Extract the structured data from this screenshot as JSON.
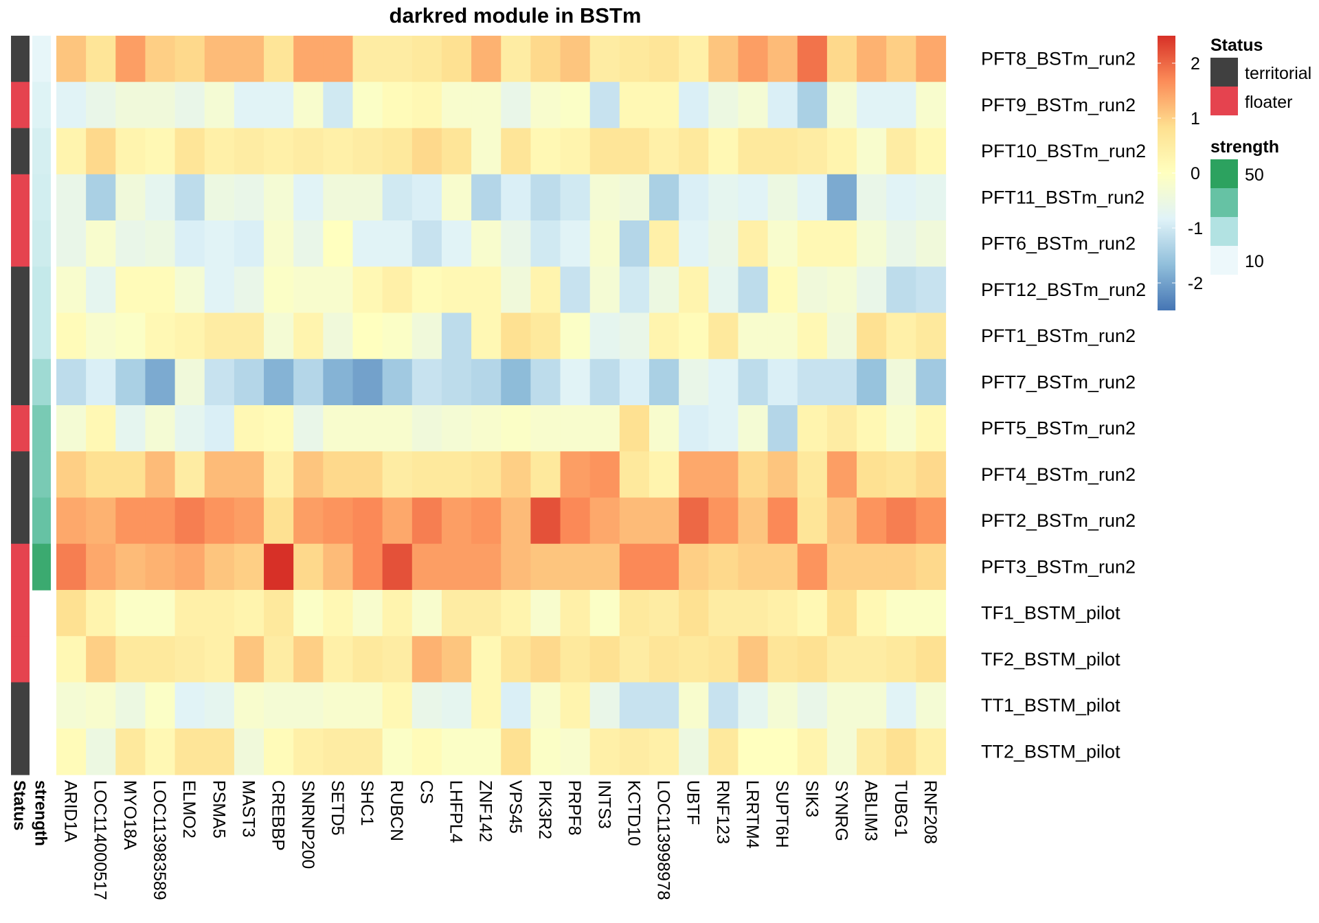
{
  "chart_data": {
    "type": "heatmap",
    "title": "darkred module in BSTm",
    "columns": [
      "ARID1A",
      "LOC114000517",
      "MYO18A",
      "LOC113983589",
      "ELMO2",
      "PSMA5",
      "MAST3",
      "CREBBP",
      "SNRNP200",
      "SETD5",
      "SHC1",
      "RUBCN",
      "CS",
      "LHFPL4",
      "ZNF142",
      "VPS45",
      "PIK3R2",
      "PRPF8",
      "INTS3",
      "KCTD10",
      "LOC113998978",
      "UBTF",
      "RNF123",
      "LRRTM4",
      "SUPT6H",
      "SIK3",
      "SYNRG",
      "ABLIM3",
      "TUBG1",
      "RNF208"
    ],
    "rows": [
      "PFT8_BSTm_run2",
      "PFT9_BSTm_run2",
      "PFT10_BSTm_run2",
      "PFT11_BSTm_run2",
      "PFT6_BSTm_run2",
      "PFT12_BSTm_run2",
      "PFT1_BSTm_run2",
      "PFT7_BSTm_run2",
      "PFT5_BSTm_run2",
      "PFT4_BSTm_run2",
      "PFT2_BSTm_run2",
      "PFT3_BSTm_run2",
      "TF1_BSTM_pilot",
      "TF2_BSTM_pilot",
      "TT1_BSTM_pilot",
      "TT2_BSTM_pilot"
    ],
    "values": [
      [
        1.1,
        0.7,
        1.5,
        1.0,
        0.9,
        1.2,
        1.2,
        0.7,
        1.4,
        1.4,
        0.5,
        0.5,
        0.6,
        0.8,
        1.3,
        0.5,
        0.9,
        1.1,
        0.5,
        0.6,
        0.7,
        0.4,
        1.1,
        1.5,
        1.2,
        1.9,
        0.9,
        1.3,
        1.0,
        1.4
      ],
      [
        -0.8,
        -0.6,
        -0.4,
        -0.4,
        -0.6,
        -0.3,
        -0.8,
        -0.8,
        -0.2,
        -1.0,
        -0.1,
        0.1,
        0.2,
        -0.2,
        -0.2,
        -0.6,
        -0.2,
        -0.1,
        -1.1,
        0.2,
        0.2,
        -0.9,
        -0.5,
        -0.3,
        -0.9,
        -1.4,
        -0.3,
        -0.8,
        -0.8,
        -0.2
      ],
      [
        0.3,
        0.9,
        0.3,
        0.2,
        0.7,
        0.4,
        0.5,
        0.4,
        0.5,
        0.4,
        0.5,
        0.6,
        0.9,
        0.7,
        -0.2,
        0.7,
        0.2,
        0.3,
        0.7,
        0.7,
        0.4,
        0.6,
        0.2,
        0.6,
        0.6,
        0.5,
        0.3,
        -0.2,
        0.5,
        0.2
      ],
      [
        -0.6,
        -1.4,
        -0.4,
        -0.7,
        -1.2,
        -0.5,
        -0.6,
        -0.3,
        -0.8,
        -0.4,
        -0.4,
        -1.0,
        -0.9,
        -0.2,
        -1.3,
        -0.9,
        -1.2,
        -1.0,
        -0.3,
        -0.4,
        -1.4,
        -0.9,
        -0.7,
        -0.8,
        -0.5,
        -0.8,
        -1.9,
        -0.6,
        -0.8,
        -0.7
      ],
      [
        -0.6,
        -0.2,
        -0.6,
        -0.5,
        -0.9,
        -0.8,
        -0.9,
        -0.2,
        -0.6,
        0.0,
        -0.8,
        -0.8,
        -1.1,
        -0.8,
        -0.2,
        -0.6,
        -1.0,
        -0.8,
        -0.2,
        -1.3,
        0.4,
        -0.8,
        -0.6,
        0.4,
        -0.2,
        0.2,
        0.2,
        -0.3,
        -0.6,
        -0.4
      ],
      [
        -0.2,
        -0.7,
        0.1,
        0.1,
        -0.3,
        -0.8,
        -0.6,
        -0.1,
        -0.2,
        -0.2,
        0.2,
        0.4,
        0.1,
        0.2,
        0.2,
        -0.4,
        0.3,
        -1.1,
        -0.3,
        -1.0,
        -0.5,
        0.3,
        -0.7,
        -1.2,
        0.1,
        -0.4,
        -0.3,
        -0.6,
        -1.2,
        -1.1
      ],
      [
        0.1,
        -0.2,
        -0.1,
        0.2,
        0.3,
        0.5,
        0.5,
        -0.3,
        0.3,
        -0.4,
        0.0,
        -0.1,
        -0.4,
        -1.2,
        0.2,
        0.8,
        0.6,
        -0.1,
        -0.7,
        -0.6,
        0.3,
        0.1,
        0.6,
        -0.2,
        -0.2,
        0.2,
        -0.4,
        0.8,
        0.4,
        0.6
      ],
      [
        -1.2,
        -0.9,
        -1.4,
        -1.9,
        -0.4,
        -1.1,
        -1.3,
        -1.8,
        -1.3,
        -1.8,
        -2.0,
        -1.5,
        -1.1,
        -1.2,
        -1.3,
        -1.7,
        -1.2,
        -0.8,
        -1.2,
        -0.9,
        -1.4,
        -0.6,
        -0.8,
        -1.2,
        -0.9,
        -1.1,
        -1.1,
        -1.6,
        -0.4,
        -1.5
      ],
      [
        -0.3,
        0.2,
        -0.7,
        -0.3,
        -0.7,
        -0.9,
        0.2,
        0.1,
        -0.6,
        -0.2,
        -0.2,
        -0.2,
        -0.4,
        -0.3,
        -0.2,
        -0.1,
        -0.2,
        -0.2,
        -0.2,
        0.8,
        -0.2,
        -0.9,
        -0.8,
        -0.3,
        -1.3,
        0.3,
        0.5,
        0.2,
        -0.2,
        0.2
      ],
      [
        1.0,
        0.8,
        0.8,
        1.2,
        0.5,
        1.2,
        1.2,
        0.4,
        1.1,
        0.9,
        0.9,
        0.5,
        0.6,
        0.6,
        0.7,
        1.0,
        0.6,
        1.5,
        1.6,
        0.6,
        0.3,
        1.4,
        1.4,
        0.9,
        1.1,
        0.6,
        1.5,
        0.8,
        0.7,
        0.9
      ],
      [
        1.4,
        1.3,
        1.6,
        1.6,
        1.8,
        1.6,
        1.5,
        0.8,
        1.5,
        1.6,
        1.7,
        1.4,
        1.8,
        1.5,
        1.6,
        1.2,
        2.2,
        1.7,
        1.4,
        1.2,
        1.2,
        2.0,
        1.6,
        1.1,
        1.7,
        0.7,
        1.1,
        1.6,
        1.8,
        1.6
      ],
      [
        1.8,
        1.4,
        1.2,
        1.3,
        1.4,
        1.1,
        1.0,
        2.5,
        0.9,
        1.2,
        1.7,
        2.2,
        1.5,
        1.5,
        1.5,
        1.2,
        1.1,
        1.1,
        1.1,
        1.7,
        1.7,
        1.0,
        0.9,
        1.0,
        1.0,
        1.6,
        1.0,
        1.0,
        1.0,
        0.9
      ],
      [
        0.8,
        0.3,
        -0.1,
        -0.1,
        0.4,
        0.4,
        0.3,
        0.6,
        -0.1,
        0.2,
        -0.2,
        0.3,
        -0.2,
        0.5,
        0.5,
        0.3,
        -0.2,
        0.4,
        -0.1,
        0.6,
        0.5,
        0.8,
        0.5,
        0.5,
        0.4,
        0.2,
        0.8,
        0.2,
        -0.1,
        -0.1
      ],
      [
        0.2,
        1.0,
        0.6,
        0.6,
        0.5,
        0.4,
        1.1,
        0.5,
        1.0,
        0.4,
        0.6,
        0.5,
        1.3,
        1.1,
        0.2,
        0.7,
        0.9,
        0.6,
        0.8,
        0.5,
        0.7,
        0.6,
        0.7,
        1.1,
        0.7,
        0.8,
        0.5,
        0.5,
        0.6,
        0.8
      ],
      [
        -0.3,
        -0.2,
        -0.5,
        -0.1,
        -0.8,
        -0.7,
        -0.2,
        -0.3,
        -0.3,
        -0.2,
        -0.2,
        0.2,
        -0.6,
        -0.7,
        0.2,
        -0.9,
        -0.2,
        0.3,
        -0.6,
        -1.1,
        -1.1,
        -0.2,
        -1.1,
        -0.7,
        -0.3,
        -0.6,
        -0.3,
        -0.3,
        -0.8,
        -0.3
      ],
      [
        0.1,
        -0.5,
        0.6,
        0.2,
        0.7,
        0.7,
        -0.4,
        0.1,
        0.4,
        0.5,
        0.5,
        -0.1,
        0.1,
        -0.1,
        -0.1,
        0.8,
        -0.1,
        -0.2,
        0.4,
        0.5,
        0.4,
        -0.5,
        0.6,
        0.0,
        0.0,
        0.3,
        -0.3,
        0.5,
        0.8,
        0.4
      ]
    ],
    "row_annotations": {
      "Status": [
        "territorial",
        "floater",
        "territorial",
        "floater",
        "floater",
        "territorial",
        "territorial",
        "territorial",
        "floater",
        "territorial",
        "territorial",
        "floater",
        "floater",
        "floater",
        "territorial",
        "territorial"
      ],
      "strength": [
        2,
        5,
        8,
        9,
        11,
        14,
        14,
        25,
        35,
        35,
        40,
        55,
        null,
        null,
        null,
        null
      ]
    },
    "annotation_labels": [
      "Status",
      "strength"
    ],
    "color_scale": {
      "breaks": [
        2,
        1,
        0,
        -1,
        -2
      ],
      "break_labels": [
        "2",
        "1",
        "0",
        "-1",
        "-2"
      ],
      "range": [
        -2.5,
        2.5
      ],
      "stops": [
        "#4575b4",
        "#91bfdb",
        "#e0f3f8",
        "#ffffbf",
        "#fee090",
        "#fc8d59",
        "#d73027"
      ]
    },
    "legend": {
      "status_title": "Status",
      "status_items": [
        {
          "label": "territorial",
          "color": "#404040"
        },
        {
          "label": "floater",
          "color": "#e5434f"
        }
      ],
      "strength_title": "strength",
      "strength_labels": [
        "50",
        "10"
      ],
      "strength_colors": [
        "#2ca25f",
        "#66c2a4",
        "#b2e2e2",
        "#edf8fb"
      ]
    }
  }
}
